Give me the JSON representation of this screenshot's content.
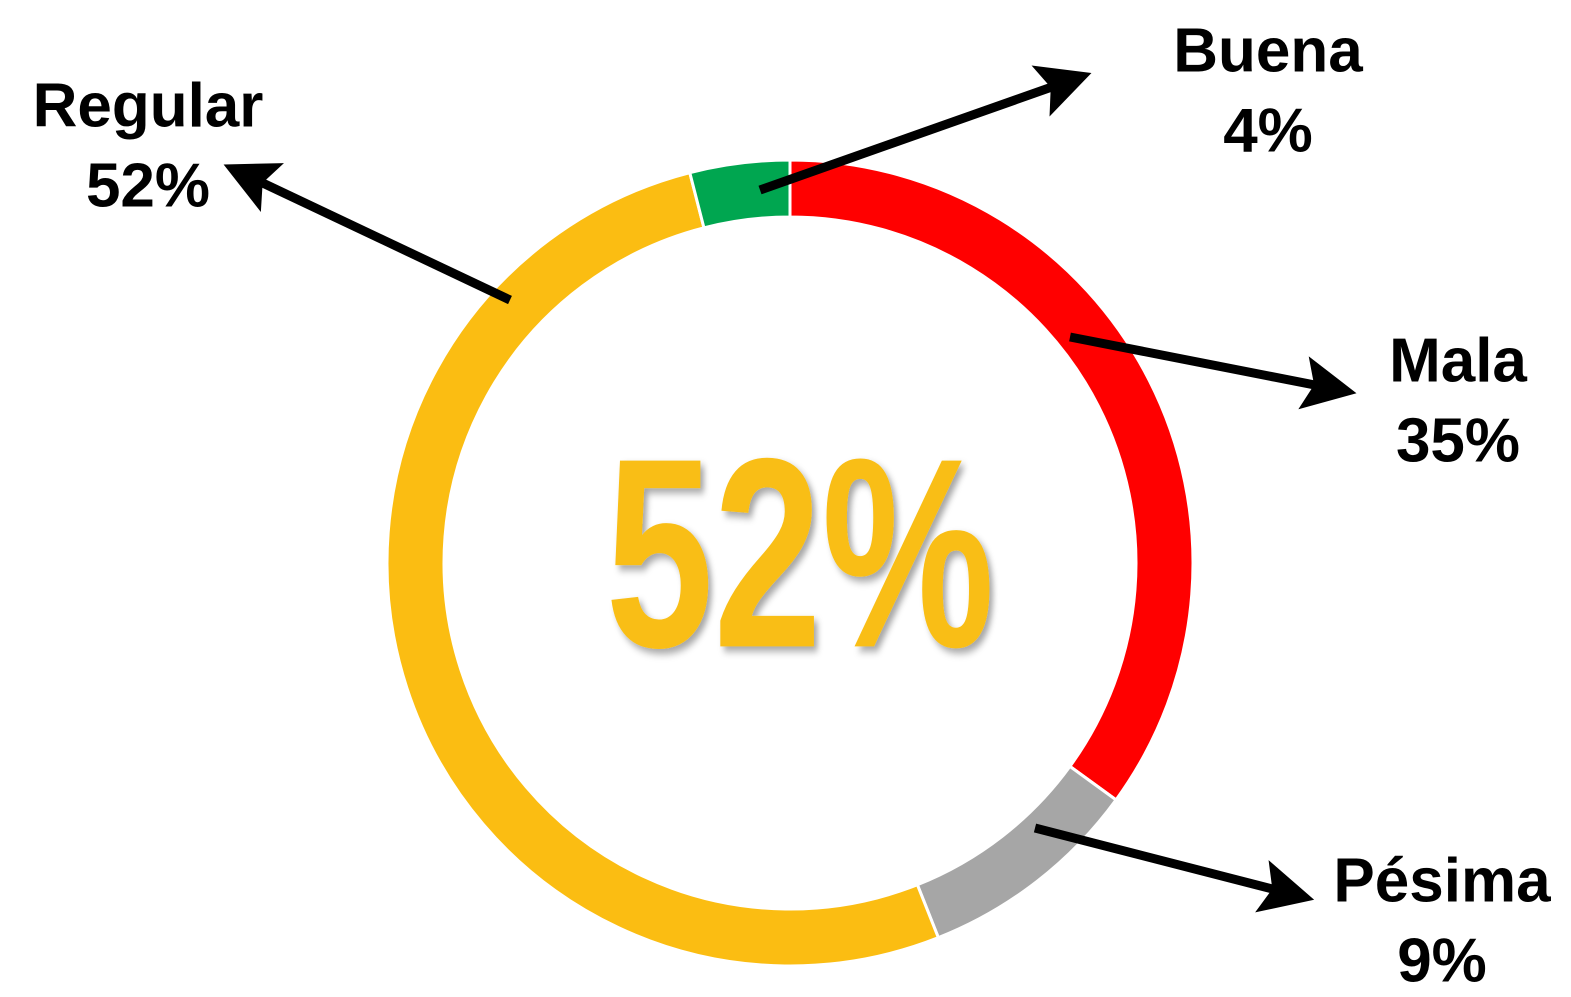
{
  "chart_data": {
    "type": "donut",
    "categories": [
      "Mala",
      "Pésima",
      "Regular",
      "Buena"
    ],
    "values": [
      35,
      9,
      52,
      4
    ],
    "value_labels": [
      "35%",
      "9%",
      "52%",
      "4%"
    ],
    "colors": [
      "#ff0000",
      "#a6a6a6",
      "#fbbd12",
      "#00a650"
    ],
    "center_text": "52%"
  }
}
